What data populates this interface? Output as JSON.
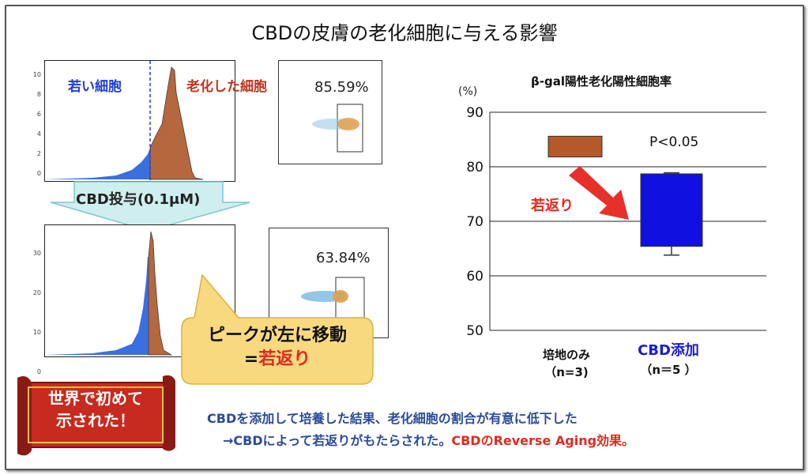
{
  "title": "CBDの皮膚の老化細胞に与える影響",
  "histograms": {
    "top_label_young": "若い細胞",
    "top_label_old": "老化した細胞",
    "top_ticks": [
      "10",
      "8",
      "6",
      "4",
      "2",
      "0"
    ],
    "bottom_ticks": [
      "30",
      "20",
      "10",
      "0"
    ],
    "arrow_label": "CBD投与(0.1μM)"
  },
  "scatter": {
    "top_pct": "85.59%",
    "bottom_pct": "63.84%"
  },
  "callout": {
    "line1": "ピークが左に移動",
    "line2_prefix": "=",
    "line2_red": "若返り"
  },
  "scroll": {
    "line1": "世界で初めて",
    "line2": "示された！"
  },
  "bottom": {
    "line1": "CBDを添加して培養した結果、老化細胞の割合が有意に低下した",
    "line2_blue": "→CBDによって若返りがもたらされた。",
    "line2_red": "CBDのReverse Aging効果。"
  },
  "chart_data": {
    "type": "bar",
    "title": "β-gal陽性老化陽性細胞率",
    "ylabel": "(%)",
    "ylim": [
      50,
      90
    ],
    "yticks": [
      90,
      80,
      70,
      60,
      50
    ],
    "grid": true,
    "categories": [
      "培地のみ",
      "CBD添加"
    ],
    "category_notes": [
      "（n=3)",
      "（n＝5 ）"
    ],
    "category_colors": [
      "#111111",
      "#1a1ad6"
    ],
    "bars": [
      {
        "category": "培地のみ",
        "low": 81.8,
        "high": 85.6,
        "error_high": null,
        "error_low": null,
        "color": "#b5582a"
      },
      {
        "category": "CBD添加",
        "low": 65.4,
        "high": 78.7,
        "error_high": 78.9,
        "error_low": 63.8,
        "color": "#1010e0"
      }
    ],
    "annotations": [
      {
        "text": "P<0.05"
      },
      {
        "text": "若返り",
        "color": "#e02b20"
      }
    ]
  }
}
